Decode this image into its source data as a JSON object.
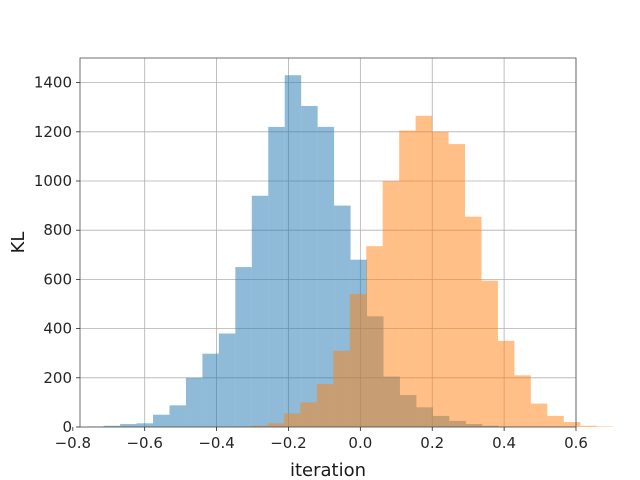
{
  "chart_data": {
    "type": "histogram",
    "title": "",
    "xlabel": "iteration",
    "ylabel": "KL",
    "xlim": [
      -0.78,
      0.6
    ],
    "ylim": [
      0,
      1500
    ],
    "xticks": [
      -0.8,
      -0.6,
      -0.4,
      -0.2,
      0.0,
      0.2,
      0.4,
      0.6
    ],
    "xtick_labels": [
      "−0.8",
      "−0.6",
      "−0.4",
      "−0.2",
      "0.0",
      "0.2",
      "0.4",
      "0.6"
    ],
    "yticks": [
      0,
      200,
      400,
      600,
      800,
      1000,
      1200,
      1400
    ],
    "ytick_labels": [
      "0",
      "200",
      "400",
      "600",
      "800",
      "1000",
      "1200",
      "1400"
    ],
    "grid": true,
    "legend": "none",
    "series": [
      {
        "color": "#1f77b4",
        "opacity": 0.5,
        "bin_start": -0.76,
        "bin_width": 0.0458,
        "counts": [
          2,
          5,
          12,
          15,
          50,
          88,
          200,
          298,
          380,
          650,
          940,
          1220,
          1430,
          1305,
          1220,
          900,
          680,
          450,
          205,
          130,
          80,
          45,
          25,
          12,
          5
        ]
      },
      {
        "color": "#ff7f0e",
        "opacity": 0.5,
        "bin_start": -0.35,
        "bin_width": 0.0458,
        "counts": [
          2,
          5,
          15,
          55,
          100,
          175,
          310,
          540,
          735,
          1000,
          1205,
          1265,
          1200,
          1150,
          855,
          595,
          350,
          210,
          95,
          45,
          20,
          5,
          2
        ]
      }
    ]
  }
}
